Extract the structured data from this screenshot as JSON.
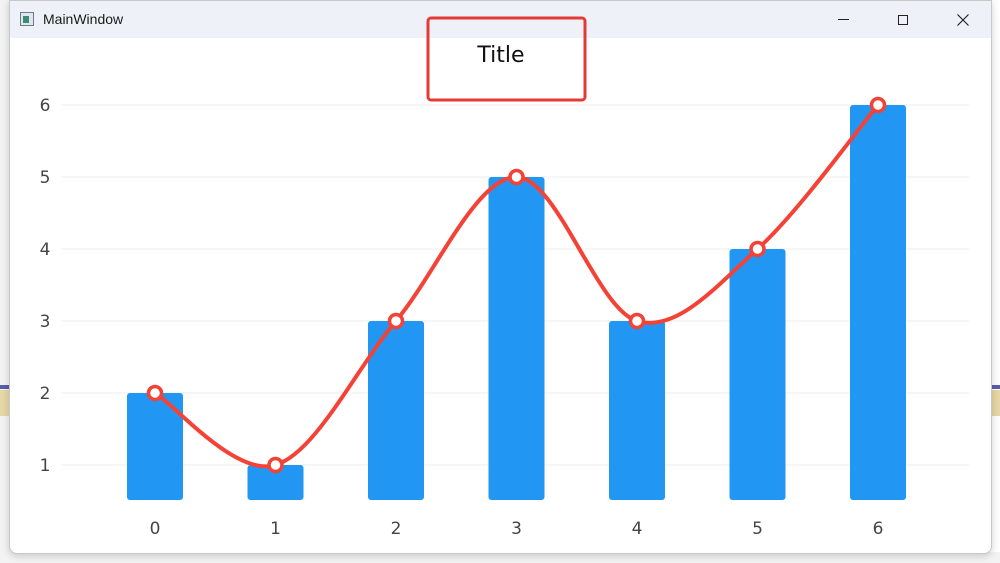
{
  "window": {
    "title": "MainWindow"
  },
  "colors": {
    "bar": "#2196f3",
    "line": "#f44336",
    "grid": "#ececec",
    "highlight_box": "#e53935"
  },
  "icons": {
    "app": "app-window-icon",
    "minimize": "minimize-icon",
    "maximize": "maximize-icon",
    "close": "close-icon"
  },
  "chart_data": {
    "type": "bar",
    "title": "Title",
    "categories": [
      "0",
      "1",
      "2",
      "3",
      "4",
      "5",
      "6"
    ],
    "series": [
      {
        "type": "bar",
        "values": [
          2,
          1,
          3,
          5,
          3,
          4,
          6
        ]
      },
      {
        "type": "line",
        "smooth": true,
        "values": [
          2,
          1,
          3,
          5,
          3,
          4,
          6
        ]
      }
    ],
    "yticks": [
      "1",
      "2",
      "3",
      "4",
      "5",
      "6"
    ],
    "grid": true,
    "title_highlighted": true
  }
}
